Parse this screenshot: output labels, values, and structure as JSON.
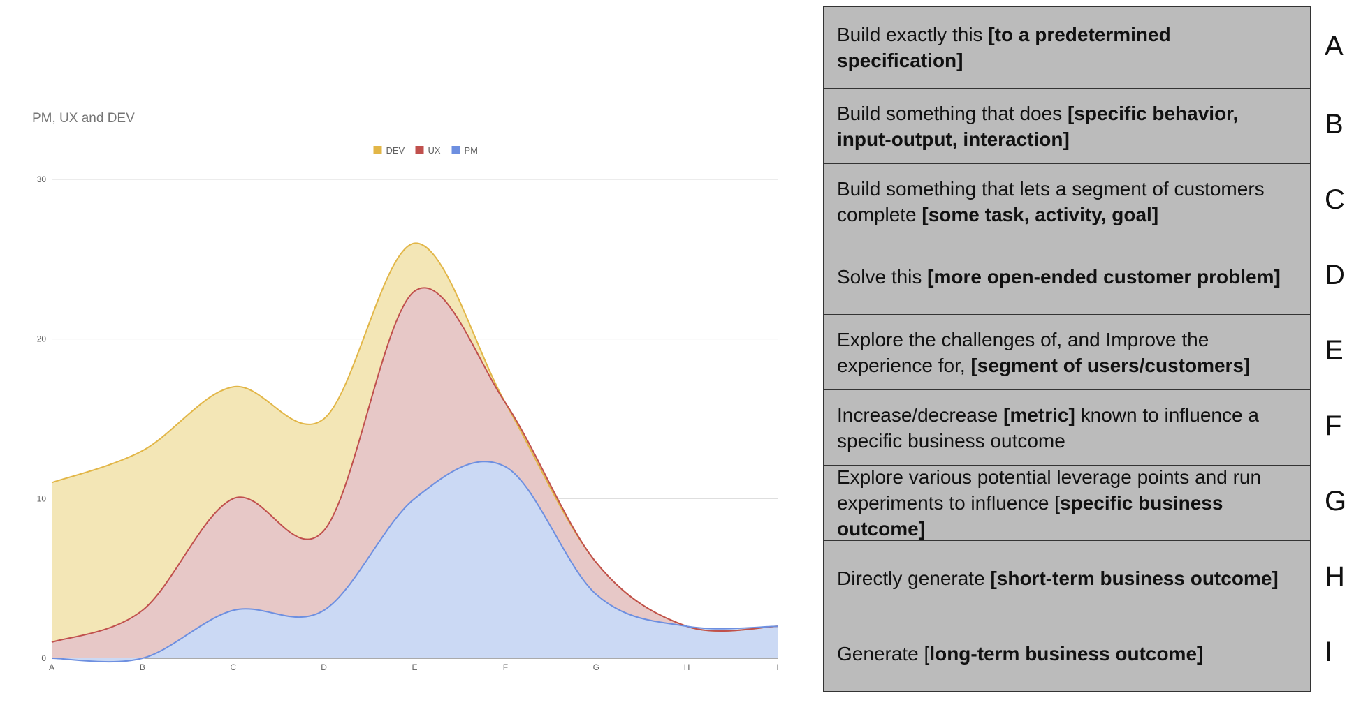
{
  "chart_data": {
    "type": "area",
    "stacked": true,
    "smooth": true,
    "title": "PM, UX and DEV",
    "xlabel": "",
    "ylabel": "",
    "categories": [
      "A",
      "B",
      "C",
      "D",
      "E",
      "F",
      "G",
      "H",
      "I"
    ],
    "ylim": [
      0,
      30
    ],
    "yticks": [
      0,
      10,
      20,
      30
    ],
    "grid": true,
    "legend_position": "top",
    "legend_order": [
      "DEV",
      "UX",
      "PM"
    ],
    "series": [
      {
        "name": "PM",
        "values": [
          -1.5,
          0,
          3,
          3,
          10,
          12,
          4,
          2,
          2
        ],
        "color": "#6d8fe0",
        "fill": "#cbd9f4"
      },
      {
        "name": "UX",
        "values": [
          2.5,
          3,
          7,
          5,
          13,
          4,
          2,
          0,
          0
        ],
        "color": "#c0504d",
        "fill": "#e7c8c7"
      },
      {
        "name": "DEV",
        "values": [
          10,
          10,
          7,
          7,
          3,
          0,
          0,
          0,
          0
        ],
        "color": "#e2b647",
        "fill": "#f3e6b6"
      }
    ]
  },
  "panel": {
    "rows": [
      {
        "letter": "A",
        "parts": [
          {
            "text": "Build exactly this ",
            "bold": false
          },
          {
            "text": "[to a predetermined specification]",
            "bold": true
          }
        ]
      },
      {
        "letter": "B",
        "parts": [
          {
            "text": "Build something that does ",
            "bold": false
          },
          {
            "text": "[specific behavior, input-output, interaction]",
            "bold": true
          }
        ]
      },
      {
        "letter": "C",
        "parts": [
          {
            "text": "Build something that lets a segment of customers complete ",
            "bold": false
          },
          {
            "text": "[some task, activity, goal]",
            "bold": true
          }
        ]
      },
      {
        "letter": "D",
        "parts": [
          {
            "text": "Solve this ",
            "bold": false
          },
          {
            "text": "[more open-ended customer problem]",
            "bold": true
          }
        ]
      },
      {
        "letter": "E",
        "parts": [
          {
            "text": "Explore the challenges of, and Improve the experience for, ",
            "bold": false
          },
          {
            "text": "[segment of users/customers]",
            "bold": true
          }
        ]
      },
      {
        "letter": "F",
        "parts": [
          {
            "text": "Increase/decrease ",
            "bold": false
          },
          {
            "text": "[metric]",
            "bold": true
          },
          {
            "text": " known to influence a specific business outcome",
            "bold": false
          }
        ]
      },
      {
        "letter": "G",
        "parts": [
          {
            "text": "Explore various potential leverage points and run experiments to influence [",
            "bold": false
          },
          {
            "text": "specific business outcome]",
            "bold": true
          }
        ]
      },
      {
        "letter": "H",
        "parts": [
          {
            "text": "Directly generate ",
            "bold": false
          },
          {
            "text": "[short-term business outcome]",
            "bold": true
          }
        ]
      },
      {
        "letter": "I",
        "parts": [
          {
            "text": "Generate [",
            "bold": false
          },
          {
            "text": "long-term business outcome]",
            "bold": true
          }
        ]
      }
    ]
  }
}
